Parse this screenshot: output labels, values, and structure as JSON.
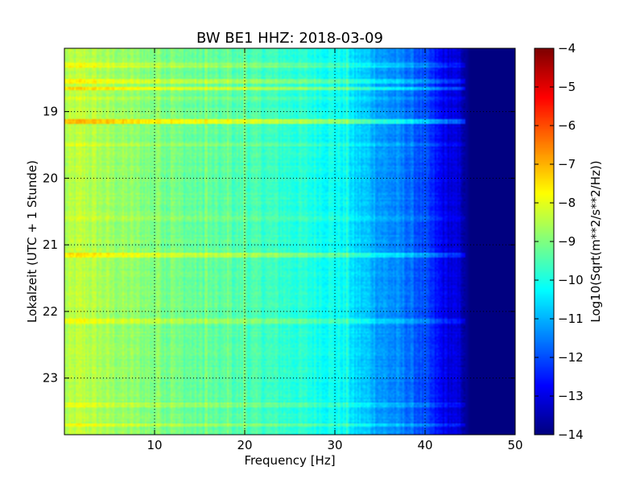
{
  "chart_data": {
    "type": "heatmap",
    "title": "BW BE1 HHZ: 2018-03-09",
    "xlabel": "Frequency [Hz]",
    "ylabel": "Lokalzeit (UTC + 1 Stunde)",
    "xlim": [
      0,
      50
    ],
    "ylim": [
      18.05,
      23.85
    ],
    "y_inverted": true,
    "xticks": [
      10,
      20,
      30,
      40,
      50
    ],
    "xtick_labels": [
      "10",
      "20",
      "30",
      "40",
      "50"
    ],
    "yticks": [
      19,
      20,
      21,
      22,
      23
    ],
    "ytick_labels": [
      "19",
      "20",
      "21",
      "22",
      "23"
    ],
    "grid": true,
    "colormap": "jet",
    "colorbar": {
      "label": "Log10(Sqrt(m**2/s**2/Hz))",
      "range": [
        -14,
        -4
      ],
      "ticks": [
        -4,
        -5,
        -6,
        -7,
        -8,
        -9,
        -10,
        -11,
        -12,
        -13,
        -14
      ],
      "tick_labels": [
        "−4",
        "−5",
        "−6",
        "−7",
        "−8",
        "−9",
        "−10",
        "−11",
        "−12",
        "−13",
        "−14"
      ]
    },
    "spectrum_profile": {
      "frequency_hz": [
        0,
        2,
        5,
        10,
        15,
        20,
        25,
        28,
        31,
        32,
        34,
        35,
        38,
        40,
        42,
        44,
        45,
        50
      ],
      "level": [
        -8.6,
        -8.4,
        -8.7,
        -9.0,
        -9.3,
        -9.5,
        -9.8,
        -10.0,
        -10.2,
        -10.6,
        -10.9,
        -11.2,
        -11.6,
        -12.1,
        -12.9,
        -13.3,
        -14.0,
        -14.0
      ]
    },
    "horizontal_bands": [
      {
        "time": 18.3,
        "level_offset": 0.6
      },
      {
        "time": 18.55,
        "level_offset": 0.7
      },
      {
        "time": 18.65,
        "level_offset": 1.1
      },
      {
        "time": 18.8,
        "level_offset": 0.4
      },
      {
        "time": 19.15,
        "level_offset": 1.3
      },
      {
        "time": 19.5,
        "level_offset": 0.4
      },
      {
        "time": 20.6,
        "level_offset": 0.3
      },
      {
        "time": 21.15,
        "level_offset": 0.9
      },
      {
        "time": 22.15,
        "level_offset": 0.7
      },
      {
        "time": 23.4,
        "level_offset": 0.5
      },
      {
        "time": 23.7,
        "level_offset": 0.6
      }
    ],
    "vertical_lines_hz": [
      10.5,
      12,
      15.8,
      18.2,
      20,
      31.5
    ]
  }
}
